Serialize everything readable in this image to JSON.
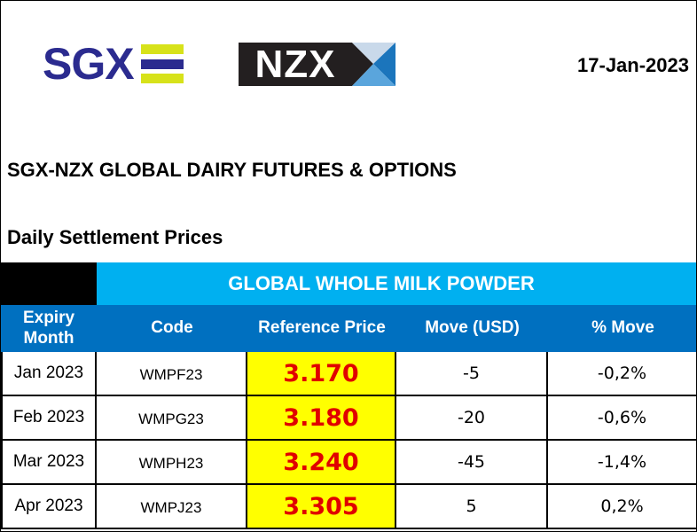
{
  "logos": {
    "sgx": "SGX",
    "nzx": "NZX"
  },
  "date": "17-Jan-2023",
  "title": "SGX-NZX GLOBAL DAIRY FUTURES & OPTIONS",
  "subtitle": "Daily Settlement Prices",
  "colors": {
    "sgx_blue": "#2b2b8f",
    "sgx_yellow": "#d7e21a",
    "product_bar": "#00b0f0",
    "header_bar": "#0070c0",
    "price_highlight": "#ffff00",
    "price_text": "#e00000"
  },
  "table": {
    "product": "GLOBAL WHOLE MILK POWDER",
    "headers": [
      "Expiry Month",
      "Code",
      "Reference Price",
      "Move (USD)",
      "% Move"
    ],
    "rows": [
      {
        "expiry": "Jan 2023",
        "code": "WMPF23",
        "price": "3.170",
        "move": "-5",
        "pct": "-0,2%"
      },
      {
        "expiry": "Feb 2023",
        "code": "WMPG23",
        "price": "3.180",
        "move": "-20",
        "pct": "-0,6%"
      },
      {
        "expiry": "Mar 2023",
        "code": "WMPH23",
        "price": "3.240",
        "move": "-45",
        "pct": "-1,4%"
      },
      {
        "expiry": "Apr 2023",
        "code": "WMPJ23",
        "price": "3.305",
        "move": "5",
        "pct": "0,2%"
      }
    ]
  }
}
